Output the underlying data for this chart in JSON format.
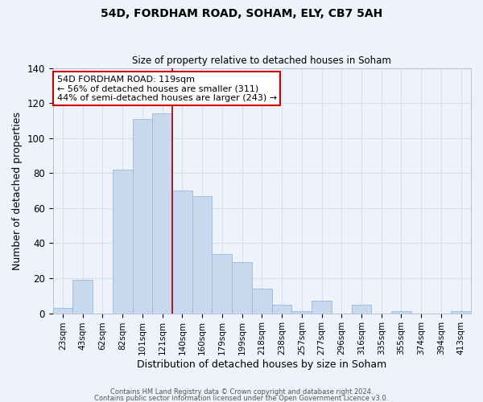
{
  "title": "54D, FORDHAM ROAD, SOHAM, ELY, CB7 5AH",
  "subtitle": "Size of property relative to detached houses in Soham",
  "xlabel": "Distribution of detached houses by size in Soham",
  "ylabel": "Number of detached properties",
  "bar_color": "#c8d8ee",
  "bar_edge_color": "#9ab8d8",
  "background_color": "#eef2fa",
  "grid_color": "#d8e0f0",
  "categories": [
    "23sqm",
    "43sqm",
    "62sqm",
    "82sqm",
    "101sqm",
    "121sqm",
    "140sqm",
    "160sqm",
    "179sqm",
    "199sqm",
    "218sqm",
    "238sqm",
    "257sqm",
    "277sqm",
    "296sqm",
    "316sqm",
    "335sqm",
    "355sqm",
    "374sqm",
    "394sqm",
    "413sqm"
  ],
  "values": [
    3,
    19,
    0,
    82,
    111,
    114,
    70,
    67,
    34,
    29,
    14,
    5,
    1,
    7,
    0,
    5,
    0,
    1,
    0,
    0,
    1
  ],
  "ylim": [
    0,
    140
  ],
  "yticks": [
    0,
    20,
    40,
    60,
    80,
    100,
    120,
    140
  ],
  "vline_index": 5,
  "vline_color": "#990000",
  "annotation_text": "54D FORDHAM ROAD: 119sqm\n← 56% of detached houses are smaller (311)\n44% of semi-detached houses are larger (243) →",
  "annotation_box_color": "#ffffff",
  "annotation_box_edge_color": "#cc0000",
  "footer_line1": "Contains HM Land Registry data © Crown copyright and database right 2024.",
  "footer_line2": "Contains public sector information licensed under the Open Government Licence v3.0."
}
